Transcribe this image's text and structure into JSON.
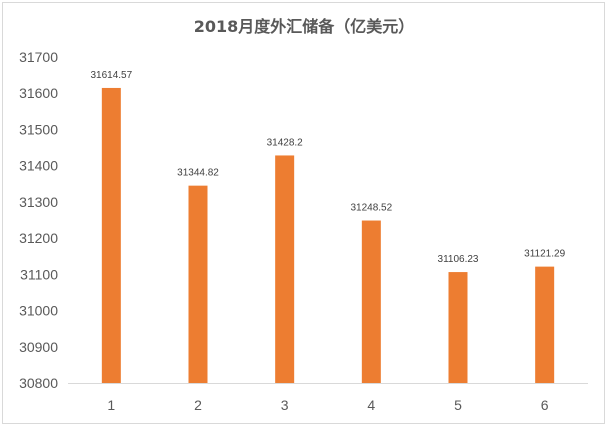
{
  "chart_data": {
    "type": "bar",
    "title": "2018月度外汇储备（亿美元）",
    "xlabel": "",
    "ylabel": "",
    "categories": [
      "1",
      "2",
      "3",
      "4",
      "5",
      "6"
    ],
    "values": [
      31614.57,
      31344.82,
      31428.2,
      31248.52,
      31106.23,
      31121.29
    ],
    "data_labels": [
      "31614.57",
      "31344.82",
      "31428.2",
      "31248.52",
      "31106.23",
      "31121.29"
    ],
    "ylim": [
      30800,
      31700
    ],
    "yticks": [
      30800,
      30900,
      31000,
      31100,
      31200,
      31300,
      31400,
      31500,
      31600,
      31700
    ],
    "grid": false,
    "legend": "none",
    "colors": {
      "bar": "#ed7d31",
      "axis": "#d9d9d9",
      "text": "#595959"
    }
  }
}
